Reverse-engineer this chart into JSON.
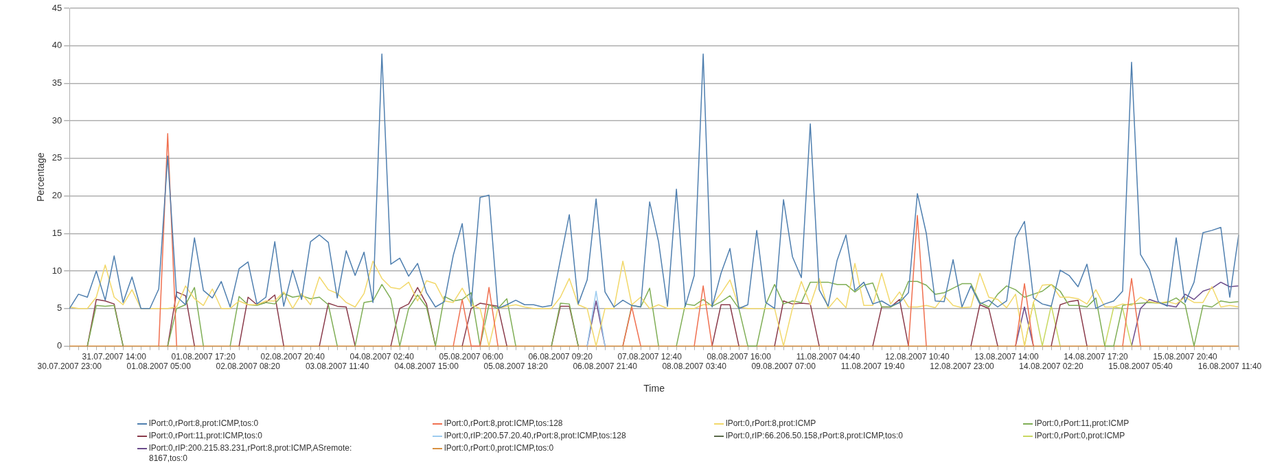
{
  "chart_data": {
    "type": "line",
    "ylabel": "Percentage",
    "xlabel": "Time",
    "ylim": [
      0,
      45
    ],
    "yticks": [
      0,
      5,
      10,
      15,
      20,
      25,
      30,
      35,
      40,
      45
    ],
    "grid": "y",
    "legend": "bottom",
    "marker": "none",
    "line_style": "solid",
    "categories": [
      "30.07.2007 23:00",
      null,
      null,
      null,
      null,
      "31.07.2007 14:00",
      null,
      null,
      null,
      null,
      "01.08.2007 05:00",
      null,
      null,
      null,
      null,
      "01.08.2007 17:20",
      null,
      null,
      null,
      null,
      "02.08.2007 08:20",
      null,
      null,
      null,
      null,
      "02.08.2007 20:40",
      null,
      null,
      null,
      null,
      "03.08.2007 11:40",
      null,
      null,
      null,
      null,
      "04.08.2007 02:40",
      null,
      null,
      null,
      null,
      "04.08.2007 15:00",
      null,
      null,
      null,
      null,
      "05.08.2007 06:00",
      null,
      null,
      null,
      null,
      "05.08.2007 18:20",
      null,
      null,
      null,
      null,
      "06.08.2007 09:20",
      null,
      null,
      null,
      null,
      "06.08.2007 21:40",
      null,
      null,
      null,
      null,
      "07.08.2007 12:40",
      null,
      null,
      null,
      null,
      "08.08.2007 03:40",
      null,
      null,
      null,
      null,
      "08.08.2007 16:00",
      null,
      null,
      null,
      null,
      "09.08.2007 07:00",
      null,
      null,
      null,
      null,
      "11.08.2007 04:40",
      null,
      null,
      null,
      null,
      "11.08.2007 19:40",
      null,
      null,
      null,
      null,
      "12.08.2007 10:40",
      null,
      null,
      null,
      null,
      "12.08.2007 23:00",
      null,
      null,
      null,
      null,
      "13.08.2007 14:00",
      null,
      null,
      null,
      null,
      "14.08.2007 02:20",
      null,
      null,
      null,
      null,
      "14.08.2007 17:20",
      null,
      null,
      null,
      null,
      "15.08.2007 05:40",
      null,
      null,
      null,
      null,
      "15.08.2007 20:40",
      null,
      null,
      null,
      null,
      "16.08.2007 11:40",
      null
    ],
    "series": [
      {
        "name": "lPort:0,rPort:8,prot:ICMP,tos:0",
        "color": "#4f7faf",
        "values": [
          5.0,
          6.9,
          6.5,
          10.0,
          6.1,
          12.0,
          5.8,
          9.2,
          5.0,
          5.0,
          7.6,
          25.3,
          6.6,
          5.5,
          14.4,
          7.4,
          6.4,
          8.6,
          5.2,
          10.3,
          11.2,
          5.6,
          6.5,
          13.9,
          5.3,
          10.1,
          6.2,
          13.9,
          14.8,
          13.8,
          6.4,
          12.7,
          9.4,
          12.5,
          5.8,
          38.9,
          10.9,
          11.7,
          9.3,
          11.0,
          7.1,
          5.2,
          5.9,
          12.1,
          16.3,
          5.3,
          19.8,
          20.1,
          5.0,
          5.5,
          6.1,
          5.5,
          5.5,
          5.2,
          5.4,
          11.5,
          17.5,
          5.6,
          8.8,
          19.6,
          7.2,
          5.2,
          6.1,
          5.4,
          5.2,
          19.2,
          13.9,
          5.3,
          20.9,
          5.3,
          9.4,
          38.9,
          5.2,
          9.7,
          13.0,
          5.0,
          5.5,
          15.4,
          5.8,
          5.0,
          19.5,
          11.9,
          9.1,
          29.6,
          7.5,
          5.3,
          11.4,
          14.8,
          7.4,
          8.5,
          5.6,
          6.0,
          5.3,
          5.8,
          7.1,
          20.3,
          15.0,
          6.0,
          5.9,
          11.5,
          5.2,
          8.0,
          5.6,
          6.1,
          5.2,
          6.0,
          14.4,
          16.6,
          6.4,
          5.6,
          5.3,
          10.1,
          9.4,
          7.9,
          10.9,
          5.0,
          5.6,
          6.0,
          7.3,
          37.8,
          12.2,
          10.2,
          5.9,
          5.3,
          14.4,
          5.8,
          8.5,
          15.1,
          15.4,
          15.8,
          6.5,
          14.8
        ]
      },
      {
        "name": "lPort:0,rPort:8,prot:ICMP,tos:128",
        "color": "#f07050",
        "values": [
          null,
          null,
          null,
          null,
          null,
          null,
          null,
          null,
          null,
          null,
          0,
          28.3,
          0,
          null,
          null,
          null,
          null,
          null,
          null,
          null,
          null,
          null,
          null,
          null,
          null,
          null,
          null,
          null,
          null,
          null,
          null,
          null,
          null,
          null,
          null,
          null,
          null,
          null,
          null,
          null,
          null,
          null,
          null,
          0,
          6.2,
          0,
          0,
          7.8,
          0,
          null,
          null,
          null,
          null,
          null,
          null,
          null,
          null,
          null,
          null,
          null,
          null,
          null,
          0,
          5.2,
          0,
          null,
          null,
          null,
          null,
          null,
          0,
          8.0,
          0,
          null,
          null,
          null,
          null,
          null,
          null,
          null,
          null,
          null,
          null,
          null,
          null,
          null,
          null,
          null,
          null,
          null,
          null,
          null,
          null,
          null,
          0,
          17.4,
          0,
          null,
          null,
          null,
          null,
          null,
          null,
          null,
          null,
          null,
          0,
          8.3,
          0,
          null,
          null,
          null,
          null,
          null,
          null,
          null,
          null,
          null,
          0,
          9.0,
          0,
          null,
          null,
          null,
          null,
          null,
          null,
          null,
          null,
          null,
          null,
          null
        ]
      },
      {
        "name": "lPort:0,rPort:8,prot:ICMP",
        "color": "#f2d86a",
        "values": [
          5.2,
          5.0,
          5.0,
          6.5,
          10.8,
          6.5,
          5.5,
          7.5,
          5.0,
          5.0,
          5.0,
          5.0,
          5.2,
          8.0,
          6.3,
          5.4,
          7.6,
          5.0,
          5.0,
          6.0,
          5.5,
          5.5,
          6.0,
          6.0,
          7.2,
          5.0,
          7.0,
          5.5,
          9.2,
          7.5,
          7.0,
          5.8,
          5.2,
          7.0,
          11.3,
          9.0,
          7.8,
          7.6,
          8.5,
          6.0,
          8.7,
          8.3,
          6.0,
          5.8,
          7.7,
          5.5,
          5.0,
          0,
          5.0,
          5.3,
          5.5,
          5.2,
          5.0,
          5.0,
          5.0,
          6.5,
          9.0,
          5.5,
          5.0,
          0,
          5.0,
          5.0,
          11.3,
          5.5,
          6.5,
          5.0,
          5.5,
          5.0,
          5.0,
          5.0,
          5.0,
          5.5,
          5.5,
          7.0,
          8.8,
          5.2,
          5.0,
          5.0,
          5.0,
          5.0,
          0,
          5.0,
          8.6,
          5.5,
          9.0,
          5.0,
          6.4,
          5.1,
          11.0,
          5.4,
          5.4,
          9.7,
          5.6,
          7.2,
          5.2,
          5.2,
          5.4,
          5.1,
          6.7,
          5.4,
          5.1,
          5.2,
          9.7,
          6.5,
          6.2,
          5.1,
          6.9,
          0,
          5.8,
          8.1,
          8.2,
          6.5,
          6.5,
          6.3,
          5.6,
          7.5,
          5.2,
          5.2,
          5.6,
          5.4,
          6.5,
          5.9,
          5.7,
          5.9,
          5.6,
          6.5,
          5.8,
          5.8,
          7.9,
          5.2,
          5.4,
          5.2
        ]
      },
      {
        "name": "lPort:0,rPort:11,prot:ICMP",
        "color": "#7fae55",
        "values": [
          null,
          null,
          0,
          5.4,
          5.3,
          5.4,
          0,
          null,
          null,
          null,
          null,
          0,
          5.0,
          5.5,
          7.8,
          0,
          null,
          null,
          0,
          6.6,
          5.5,
          5.4,
          5.8,
          5.6,
          7.0,
          6.5,
          6.7,
          6.3,
          6.5,
          5.5,
          0,
          null,
          0,
          5.8,
          6.0,
          8.2,
          6.3,
          0,
          5.0,
          6.8,
          5.2,
          0,
          6.6,
          6.0,
          6.2,
          7.1,
          0,
          5.5,
          5.0,
          6.3,
          0,
          null,
          null,
          null,
          0,
          5.7,
          5.6,
          0,
          null,
          null,
          null,
          null,
          0,
          5.4,
          5.2,
          7.7,
          0,
          null,
          0,
          5.6,
          5.4,
          6.2,
          5.3,
          5.9,
          6.7,
          5.0,
          0,
          0,
          5.5,
          8.2,
          5.6,
          6.0,
          5.8,
          8.5,
          8.5,
          8.5,
          8.2,
          8.2,
          7.2,
          8.1,
          8.4,
          5.2,
          5.2,
          5.8,
          8.6,
          8.6,
          8.1,
          6.9,
          7.1,
          7.7,
          8.3,
          8.3,
          5.8,
          5.2,
          6.9,
          8.0,
          7.5,
          6.5,
          6.9,
          7.3,
          8.2,
          7.3,
          5.4,
          5.4,
          5.2,
          6.4,
          0,
          0,
          5.4,
          5.6,
          5.7,
          5.8,
          5.7,
          5.8,
          6.4,
          5.5,
          0,
          5.4,
          5.2,
          6.0,
          5.8,
          5.9
        ]
      },
      {
        "name": "lPort:0,rPort:11,prot:ICMP,tos:0",
        "color": "#8a3a4a",
        "values": [
          null,
          null,
          0,
          6.2,
          6.0,
          5.6,
          0,
          null,
          null,
          null,
          null,
          0,
          7.2,
          6.7,
          0,
          null,
          null,
          null,
          null,
          0,
          6.5,
          5.5,
          5.8,
          6.8,
          0,
          null,
          null,
          null,
          0,
          5.7,
          5.3,
          5.2,
          0,
          null,
          null,
          null,
          0,
          5.0,
          5.6,
          7.8,
          5.6,
          0,
          null,
          null,
          0,
          5.0,
          5.7,
          5.5,
          5.3,
          0,
          null,
          null,
          null,
          null,
          0,
          5.3,
          5.3,
          0,
          null,
          null,
          null,
          null,
          null,
          null,
          null,
          null,
          null,
          null,
          null,
          null,
          null,
          null,
          0,
          5.5,
          5.5,
          0,
          null,
          null,
          null,
          0,
          6.0,
          5.6,
          5.7,
          5.6,
          0,
          null,
          null,
          null,
          null,
          null,
          0,
          5.2,
          5.2,
          6.2,
          0,
          null,
          null,
          null,
          null,
          null,
          null,
          0,
          5.5,
          5.0,
          0,
          null,
          null,
          null,
          null,
          null,
          0,
          5.5,
          5.9,
          6.1,
          0,
          null,
          null,
          null,
          null,
          null,
          null,
          null,
          null,
          null,
          null,
          null,
          null,
          null,
          null,
          null,
          null,
          null
        ]
      },
      {
        "name": "lPort:0,rIP:200.57.20.40,rPort:8,prot:ICMP,tos:128",
        "color": "#9ccbef",
        "values": [
          null,
          null,
          null,
          null,
          null,
          null,
          null,
          null,
          null,
          null,
          null,
          null,
          null,
          null,
          null,
          null,
          null,
          null,
          null,
          null,
          null,
          null,
          null,
          null,
          null,
          null,
          null,
          null,
          null,
          null,
          null,
          null,
          null,
          null,
          null,
          null,
          null,
          null,
          null,
          null,
          null,
          null,
          null,
          null,
          null,
          null,
          null,
          null,
          null,
          null,
          null,
          null,
          null,
          null,
          null,
          null,
          null,
          null,
          0,
          7.3,
          0,
          null,
          null,
          null,
          null,
          null,
          null,
          null,
          null,
          null,
          null,
          null,
          null,
          null,
          null,
          null,
          null,
          null,
          null,
          null,
          null,
          null,
          null,
          null,
          null,
          null,
          null,
          null,
          null,
          null,
          null,
          null,
          null,
          null,
          null,
          null,
          null,
          null,
          null,
          null,
          null,
          null,
          null,
          null,
          null,
          null,
          null,
          null,
          null,
          null,
          null,
          null,
          null,
          null,
          null,
          null,
          null,
          null,
          null,
          null,
          null,
          null,
          null,
          null,
          null,
          null,
          null,
          null,
          null,
          null,
          null,
          null
        ]
      },
      {
        "name": "lPort:0,rIP:66.206.50.158,rPort:8,prot:ICMP,tos:0",
        "color": "#5a6a4a",
        "values": [
          null,
          null,
          null,
          null,
          null,
          null,
          null,
          null,
          null,
          null,
          null,
          null,
          null,
          null,
          null,
          null,
          null,
          null,
          null,
          null,
          null,
          null,
          null,
          null,
          null,
          null,
          null,
          null,
          null,
          null,
          null,
          null,
          null,
          null,
          null,
          null,
          null,
          null,
          null,
          null,
          null,
          null,
          null,
          null,
          null,
          null,
          null,
          null,
          null,
          null,
          null,
          null,
          null,
          null,
          null,
          null,
          null,
          null,
          null,
          null,
          null,
          null,
          null,
          null,
          null,
          null,
          null,
          null,
          null,
          null,
          null,
          null,
          null,
          null,
          null,
          null,
          null,
          null,
          null,
          null,
          null,
          null,
          null,
          null,
          null,
          null,
          null,
          null,
          null,
          null,
          null,
          null,
          null,
          null,
          null,
          null,
          null,
          null,
          null,
          null,
          null,
          null,
          null,
          null,
          null,
          null,
          null,
          null,
          null,
          null,
          null,
          null,
          null,
          null,
          null,
          null,
          null,
          null,
          null,
          null,
          null,
          null,
          null,
          null,
          null,
          null,
          null,
          null,
          null,
          null,
          null,
          null
        ]
      },
      {
        "name": "lPort:0,rPort:0,prot:ICMP",
        "color": "#c8d860",
        "values": [
          null,
          null,
          null,
          null,
          null,
          null,
          null,
          null,
          null,
          null,
          null,
          null,
          null,
          null,
          null,
          null,
          null,
          null,
          null,
          null,
          null,
          null,
          null,
          null,
          null,
          null,
          null,
          null,
          null,
          null,
          null,
          null,
          null,
          null,
          null,
          null,
          null,
          null,
          null,
          null,
          null,
          null,
          null,
          null,
          null,
          null,
          null,
          null,
          null,
          null,
          null,
          null,
          null,
          null,
          null,
          null,
          null,
          null,
          null,
          null,
          null,
          null,
          null,
          null,
          null,
          null,
          null,
          null,
          null,
          null,
          null,
          null,
          null,
          null,
          null,
          null,
          null,
          null,
          null,
          null,
          null,
          null,
          null,
          null,
          null,
          null,
          null,
          null,
          null,
          null,
          null,
          null,
          null,
          null,
          null,
          null,
          null,
          null,
          null,
          null,
          null,
          null,
          null,
          null,
          null,
          null,
          null,
          0,
          5.8,
          0,
          5.4,
          0,
          null,
          null,
          null,
          null,
          0,
          5.2,
          5.0,
          0,
          null,
          null,
          null,
          null,
          null,
          null,
          null,
          null,
          null,
          null,
          null,
          null
        ]
      },
      {
        "name": "lPort:0,rIP:200.215.83.231,rPort:8,prot:ICMP,ASremote:8167,tos:0",
        "color": "#6a4a8a",
        "values": [
          null,
          null,
          null,
          null,
          null,
          null,
          null,
          null,
          null,
          null,
          null,
          null,
          null,
          null,
          null,
          null,
          null,
          null,
          null,
          null,
          null,
          null,
          null,
          null,
          null,
          null,
          null,
          null,
          null,
          null,
          null,
          null,
          null,
          null,
          null,
          null,
          null,
          null,
          null,
          null,
          null,
          null,
          null,
          null,
          null,
          null,
          null,
          null,
          null,
          null,
          null,
          null,
          null,
          null,
          null,
          null,
          null,
          null,
          0,
          6.0,
          0,
          null,
          null,
          null,
          null,
          null,
          null,
          null,
          null,
          null,
          null,
          null,
          null,
          null,
          null,
          null,
          null,
          null,
          null,
          null,
          null,
          null,
          null,
          null,
          null,
          null,
          null,
          null,
          null,
          null,
          null,
          null,
          null,
          null,
          null,
          null,
          null,
          null,
          null,
          null,
          null,
          null,
          null,
          null,
          null,
          null,
          0,
          5.2,
          0,
          null,
          null,
          null,
          null,
          null,
          null,
          null,
          null,
          null,
          null,
          0,
          5.0,
          6.2,
          5.8,
          5.4,
          5.2,
          6.9,
          6.2,
          7.3,
          7.7,
          8.5,
          7.9,
          8.0
        ]
      },
      {
        "name": "lPort:0,rPort:0,prot:ICMP,tos:0",
        "color": "#d89040",
        "values": [
          0,
          0,
          0,
          0,
          0,
          0,
          0,
          0,
          0,
          0,
          0,
          0,
          0,
          0,
          0,
          0,
          0,
          0,
          0,
          0,
          0,
          0,
          0,
          0,
          0,
          0,
          0,
          0,
          0,
          0,
          0,
          0,
          0,
          0,
          0,
          0,
          0,
          0,
          0,
          0,
          0,
          0,
          0,
          0,
          0,
          0,
          0,
          0,
          0,
          0,
          0,
          0,
          0,
          0,
          0,
          0,
          0,
          0,
          0,
          0,
          0,
          0,
          0,
          0,
          0,
          0,
          0,
          0,
          0,
          0,
          0,
          0,
          0,
          0,
          0,
          0,
          0,
          0,
          0,
          0,
          0,
          0,
          0,
          0,
          0,
          0,
          0,
          0,
          0,
          0,
          0,
          0,
          0,
          0,
          0,
          0,
          0,
          0,
          0,
          0,
          0,
          0,
          0,
          0,
          0,
          0,
          0,
          0,
          0,
          0,
          0,
          0,
          0,
          0,
          0,
          0,
          0,
          0,
          0,
          0,
          0,
          0,
          0,
          0,
          0,
          0,
          0,
          0,
          0,
          0,
          0,
          0
        ]
      }
    ]
  }
}
